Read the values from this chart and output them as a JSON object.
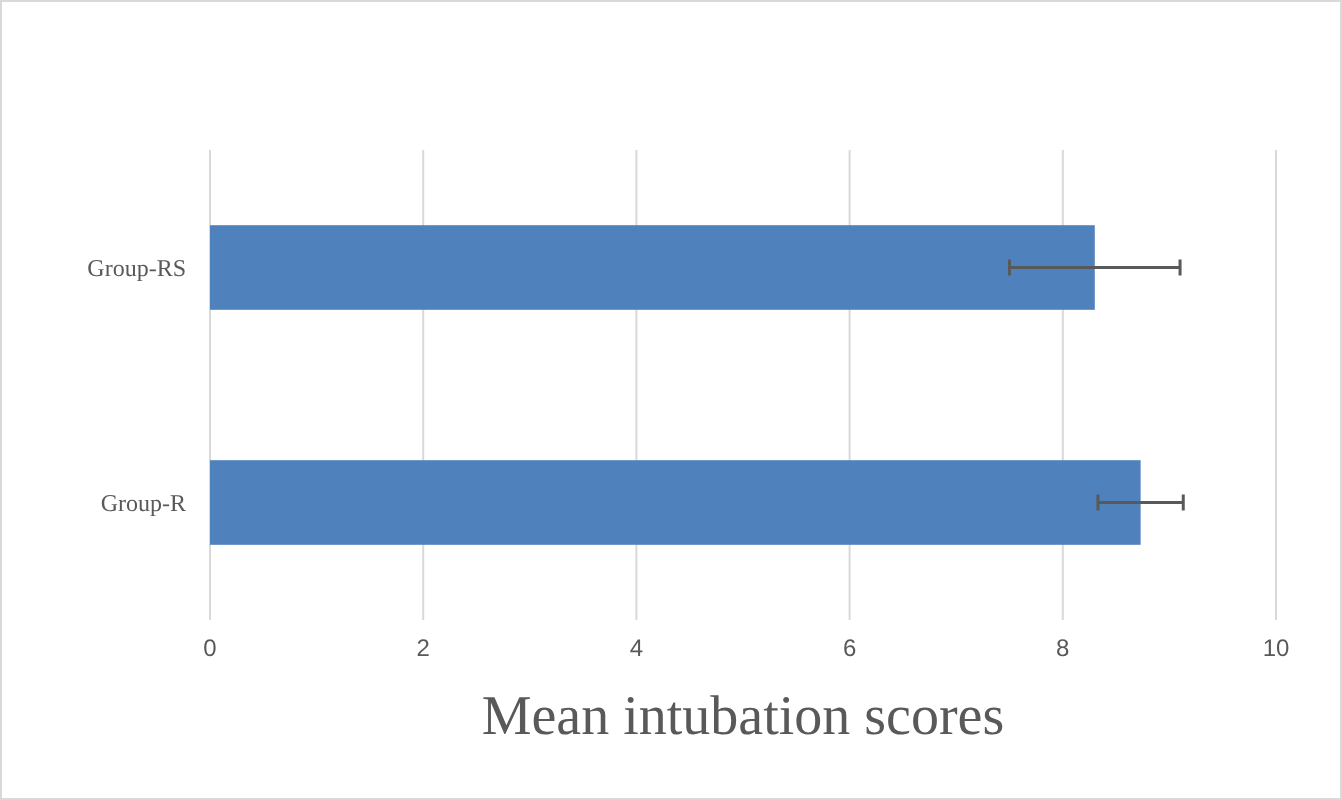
{
  "chart_data": {
    "type": "bar",
    "orientation": "horizontal",
    "xlabel": "Mean intubation scores",
    "categories": [
      "Group-RS",
      "Group-R"
    ],
    "values": [
      8.3,
      8.73
    ],
    "errors": [
      0.8,
      0.4
    ],
    "color": "#4f81bd",
    "xlim": [
      0,
      10
    ],
    "xticks": [
      0,
      2,
      4,
      6,
      8,
      10
    ],
    "grid": "x"
  }
}
